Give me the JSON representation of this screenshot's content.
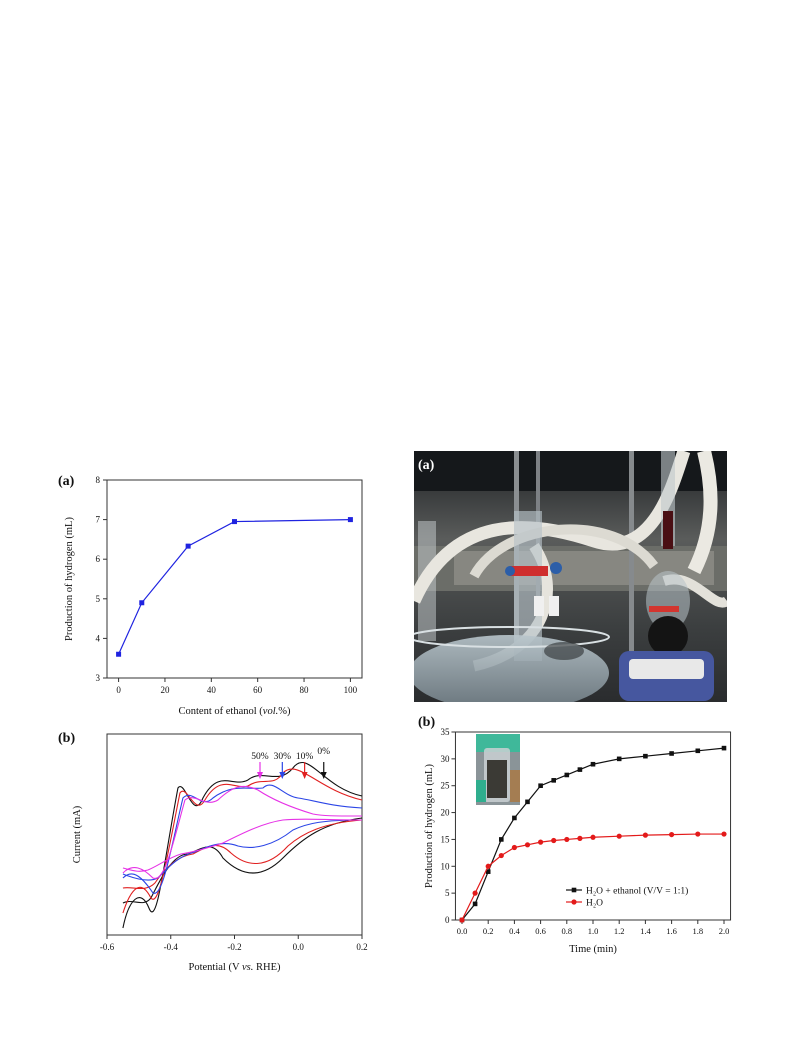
{
  "figures": {
    "left": {
      "a": {
        "letter": "(a)",
        "chart_data": {
          "type": "line",
          "x": [
            0,
            10,
            30,
            50,
            100
          ],
          "y": [
            3.6,
            4.9,
            6.33,
            6.95,
            7.0
          ],
          "xlabel_pre": "Content of ethanol (",
          "xlabel_em": "vol.",
          "xlabel_post": "%)",
          "ylabel": "Production of hydrogen (mL)",
          "xlim": [
            -5,
            105
          ],
          "ylim": [
            3,
            8
          ],
          "xticks": [
            0,
            20,
            40,
            60,
            80,
            100
          ],
          "yticks": [
            3,
            4,
            5,
            6,
            7,
            8
          ],
          "color": "#1f23e0",
          "grid": false
        }
      },
      "b": {
        "letter": "(b)",
        "chart_data": {
          "type": "line",
          "xlabel_pre": "Potential (V ",
          "xlabel_em": "vs.",
          "xlabel_post": " RHE)",
          "ylabel": "Current (mA)",
          "xlim": [
            -0.6,
            0.2
          ],
          "xticks": [
            -0.6,
            -0.4,
            -0.2,
            0.0,
            0.2
          ],
          "xtick_labels": [
            "-0.6",
            "-0.4",
            "-0.2",
            "0.0",
            "0.2"
          ],
          "yticks_shown": false,
          "series": [
            {
              "name": "0%",
              "color": "#111111",
              "peak_x": 0.08
            },
            {
              "name": "10%",
              "color": "#e02020",
              "peak_x": 0.02
            },
            {
              "name": "30%",
              "color": "#2b45e6",
              "peak_x": -0.05
            },
            {
              "name": "50%",
              "color": "#e632e6",
              "peak_x": -0.12
            }
          ]
        }
      }
    },
    "right": {
      "a": {
        "letter": "(a)"
      },
      "b": {
        "letter": "(b)",
        "chart_data": {
          "type": "line",
          "xlabel": "Time (min)",
          "ylabel": "Production of hydrogen (mL)",
          "xlim": [
            0,
            2.0
          ],
          "ylim": [
            0,
            35
          ],
          "xticks": [
            0.0,
            0.2,
            0.4,
            0.6,
            0.8,
            1.0,
            1.2,
            1.4,
            1.6,
            1.8,
            2.0
          ],
          "xtick_labels": [
            "0.0",
            "0.2",
            "0.4",
            "0.6",
            "0.8",
            "1.0",
            "1.2",
            "1.4",
            "1.6",
            "1.8",
            "2.0"
          ],
          "yticks": [
            0,
            5,
            10,
            15,
            20,
            25,
            30,
            35
          ],
          "legend_position": "bottom-right",
          "series": [
            {
              "name": "H₂O + ethanol (V/V = 1:1)",
              "color": "#111111",
              "marker": "square",
              "x": [
                0,
                0.1,
                0.2,
                0.3,
                0.4,
                0.5,
                0.6,
                0.7,
                0.8,
                0.9,
                1.0,
                1.2,
                1.4,
                1.6,
                1.8,
                2.0
              ],
              "y": [
                0,
                3,
                9,
                15,
                19,
                22,
                25,
                26,
                27,
                28,
                29,
                30,
                30.5,
                31,
                31.5,
                32
              ]
            },
            {
              "name": "H₂O",
              "color": "#e31a1a",
              "marker": "circle",
              "x": [
                0,
                0.1,
                0.2,
                0.3,
                0.4,
                0.5,
                0.6,
                0.7,
                0.8,
                0.9,
                1.0,
                1.2,
                1.4,
                1.6,
                1.8,
                2.0
              ],
              "y": [
                0,
                5,
                10,
                12,
                13.5,
                14,
                14.5,
                14.8,
                15,
                15.2,
                15.4,
                15.6,
                15.8,
                15.9,
                16,
                16
              ]
            }
          ]
        }
      }
    }
  }
}
